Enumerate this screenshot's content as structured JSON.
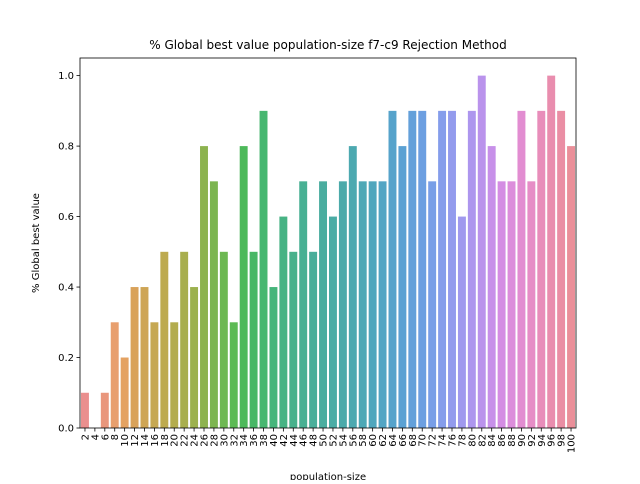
{
  "chart_data": {
    "type": "bar",
    "title": "% Global best value population-size f7-c9 Rejection Method",
    "xlabel": "population-size",
    "ylabel": "% Global best value",
    "ylim": [
      0,
      1.05
    ],
    "yticks": [
      "0.0",
      "0.2",
      "0.4",
      "0.6",
      "0.8",
      "1.0"
    ],
    "grid": false,
    "legend": "none",
    "categories": [
      "2",
      "4",
      "6",
      "8",
      "10",
      "12",
      "14",
      "16",
      "18",
      "20",
      "22",
      "24",
      "26",
      "28",
      "30",
      "32",
      "34",
      "36",
      "38",
      "40",
      "42",
      "44",
      "46",
      "48",
      "50",
      "52",
      "54",
      "56",
      "58",
      "60",
      "62",
      "64",
      "66",
      "68",
      "70",
      "72",
      "74",
      "76",
      "78",
      "80",
      "82",
      "84",
      "86",
      "88",
      "90",
      "92",
      "94",
      "96",
      "98",
      "100"
    ],
    "values": [
      0.1,
      0.0,
      0.1,
      0.3,
      0.2,
      0.4,
      0.4,
      0.3,
      0.5,
      0.3,
      0.5,
      0.4,
      0.8,
      0.7,
      0.5,
      0.3,
      0.8,
      0.5,
      0.9,
      0.4,
      0.6,
      0.5,
      0.7,
      0.5,
      0.7,
      0.6,
      0.7,
      0.8,
      0.7,
      0.7,
      0.7,
      0.9,
      0.8,
      0.9,
      0.9,
      0.7,
      0.9,
      0.9,
      0.6,
      0.9,
      1.0,
      0.8,
      0.7,
      0.7,
      0.9,
      0.7,
      0.9,
      1.0,
      0.9,
      0.8
    ],
    "colors": [
      "#ea8f8e",
      "#ea8f8e",
      "#e9967c",
      "#e89f6e",
      "#e4a262",
      "#d9a25a",
      "#cea555",
      "#c6a852",
      "#bdaa4f",
      "#b3ac4e",
      "#a8ae4e",
      "#9cb14e",
      "#8db34f",
      "#7cb550",
      "#6db852",
      "#5cba54",
      "#4db95a",
      "#48b766",
      "#47b770",
      "#46b57b",
      "#47b384",
      "#48b18c",
      "#48b093",
      "#49ae9a",
      "#4aad9f",
      "#4aaca5",
      "#4baaaa",
      "#4ca9b0",
      "#4da8b6",
      "#4fa6bd",
      "#52a5c4",
      "#56a3cb",
      "#5ba1d3",
      "#63a0da",
      "#6c9fe1",
      "#789ee7",
      "#859deb",
      "#939bed",
      "#a099ee",
      "#ad96ee",
      "#ba93ec",
      "#c790e9",
      "#d48de3",
      "#dc8ddb",
      "#e28dd1",
      "#e68dc6",
      "#e88dba",
      "#e98dae",
      "#ea8ea4",
      "#ea8f99"
    ]
  }
}
